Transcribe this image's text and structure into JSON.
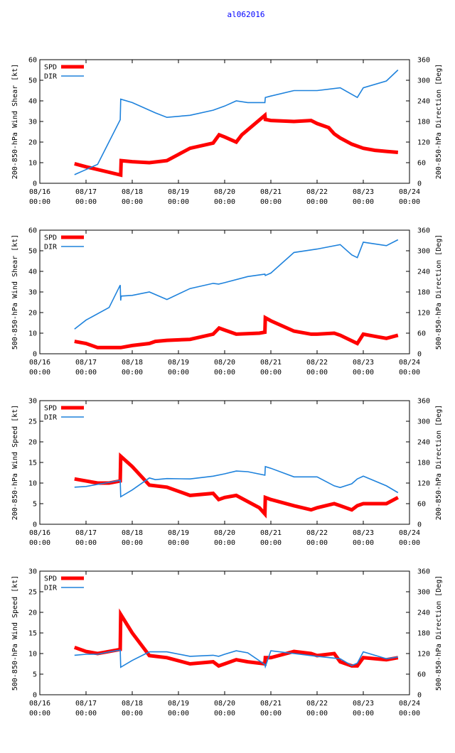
{
  "title": "al062016",
  "colors": {
    "spd": "#ff0000",
    "dir": "#1e82dc",
    "title": "#0000ff"
  },
  "chart_data": [
    {
      "type": "line",
      "ylabel": "200-850-hPa Wind Shear [kt]",
      "y2label": "200-850-hPa Direction [Deg]",
      "ylim": [
        0,
        60
      ],
      "y2lim": [
        0,
        360
      ],
      "yticks": [
        "0",
        "10",
        "20",
        "30",
        "40",
        "50",
        "60"
      ],
      "y2ticks": [
        "0",
        "60",
        "120",
        "180",
        "240",
        "300",
        "360"
      ],
      "xlim": [
        0,
        8
      ],
      "xticks": [
        [
          "08/16",
          "00:00"
        ],
        [
          "08/17",
          "00:00"
        ],
        [
          "08/18",
          "00:00"
        ],
        [
          "08/19",
          "00:00"
        ],
        [
          "08/20",
          "00:00"
        ],
        [
          "08/21",
          "00:00"
        ],
        [
          "08/22",
          "00:00"
        ],
        [
          "08/23",
          "00:00"
        ],
        [
          "08/24",
          "00:00"
        ]
      ],
      "legend": [
        "SPD",
        "DIR"
      ],
      "series": [
        {
          "name": "SPD",
          "axis": "left",
          "x": [
            0.75,
            1.0,
            1.75,
            1.76,
            2.0,
            2.37,
            2.75,
            3.0,
            3.25,
            3.75,
            3.88,
            4.0,
            4.25,
            4.37,
            4.87,
            4.88,
            5.0,
            5.5,
            5.87,
            6.0,
            6.25,
            6.37,
            6.5,
            6.75,
            7.0,
            7.25,
            7.5,
            7.75
          ],
          "y": [
            9.5,
            8,
            4,
            11,
            10.5,
            10,
            11,
            14,
            17,
            19.5,
            23.5,
            22.5,
            20,
            23.5,
            33,
            31,
            30.5,
            30,
            30.5,
            29,
            27,
            24,
            22,
            19,
            17,
            16,
            15.5,
            15
          ]
        },
        {
          "name": "DIR",
          "axis": "right",
          "x": [
            0.75,
            1.0,
            1.25,
            1.74,
            1.75,
            2.0,
            2.5,
            2.75,
            3.25,
            3.75,
            4.0,
            4.25,
            4.5,
            4.87,
            4.88,
            5.0,
            5.5,
            5.87,
            6.0,
            6.5,
            6.87,
            7.0,
            7.5,
            7.75
          ],
          "y": [
            25,
            40,
            55,
            185,
            245,
            235,
            205,
            192,
            198,
            213,
            225,
            240,
            235,
            235,
            250,
            254,
            270,
            270,
            270,
            278,
            250,
            278,
            298,
            330
          ]
        }
      ]
    },
    {
      "type": "line",
      "ylabel": "500-850-hPa Wind Shear [kt]",
      "y2label": "500-850-hPa Direction [Deg]",
      "ylim": [
        0,
        60
      ],
      "y2lim": [
        0,
        360
      ],
      "yticks": [
        "0",
        "10",
        "20",
        "30",
        "40",
        "50",
        "60"
      ],
      "y2ticks": [
        "0",
        "60",
        "120",
        "180",
        "240",
        "300",
        "360"
      ],
      "xlim": [
        0,
        8
      ],
      "xticks": [
        [
          "08/16",
          "00:00"
        ],
        [
          "08/17",
          "00:00"
        ],
        [
          "08/18",
          "00:00"
        ],
        [
          "08/19",
          "00:00"
        ],
        [
          "08/20",
          "00:00"
        ],
        [
          "08/21",
          "00:00"
        ],
        [
          "08/22",
          "00:00"
        ],
        [
          "08/23",
          "00:00"
        ],
        [
          "08/24",
          "00:00"
        ]
      ],
      "legend": [
        "SPD",
        "DIR"
      ],
      "series": [
        {
          "name": "SPD",
          "axis": "left",
          "x": [
            0.75,
            1.0,
            1.25,
            1.75,
            2.0,
            2.37,
            2.5,
            2.75,
            3.25,
            3.75,
            3.88,
            4.0,
            4.25,
            4.75,
            4.87,
            4.88,
            5.0,
            5.5,
            5.87,
            6.0,
            6.37,
            6.5,
            6.87,
            7.0,
            7.25,
            7.5,
            7.75
          ],
          "y": [
            6,
            5,
            3,
            3,
            4,
            5,
            6,
            6.5,
            7,
            9.5,
            12.5,
            11.5,
            9.5,
            10,
            10.5,
            17.5,
            16,
            11,
            9.5,
            9.5,
            10,
            9,
            5,
            9.5,
            8.5,
            7.5,
            9
          ]
        },
        {
          "name": "DIR",
          "axis": "right",
          "x": [
            0.75,
            1.0,
            1.5,
            1.74,
            1.75,
            1.76,
            2.0,
            2.37,
            2.75,
            3.25,
            3.75,
            3.87,
            4.0,
            4.5,
            4.87,
            4.88,
            5.0,
            5.5,
            6.0,
            6.5,
            6.75,
            6.87,
            7.0,
            7.5,
            7.75
          ],
          "y": [
            72,
            98,
            135,
            200,
            155,
            168,
            170,
            180,
            158,
            190,
            205,
            203,
            207,
            225,
            232,
            228,
            235,
            295,
            305,
            318,
            288,
            280,
            325,
            315,
            332
          ]
        }
      ]
    },
    {
      "type": "line",
      "ylabel": "200-850-hPa Wind Speed [kt]",
      "y2label": "200-850-hPa Direction [Deg]",
      "ylim": [
        0,
        30
      ],
      "y2lim": [
        0,
        360
      ],
      "yticks": [
        "0",
        "5",
        "10",
        "15",
        "20",
        "25",
        "30"
      ],
      "y2ticks": [
        "0",
        "60",
        "120",
        "180",
        "240",
        "300",
        "360"
      ],
      "xlim": [
        0,
        8
      ],
      "xticks": [
        [
          "08/16",
          "00:00"
        ],
        [
          "08/17",
          "00:00"
        ],
        [
          "08/18",
          "00:00"
        ],
        [
          "08/19",
          "00:00"
        ],
        [
          "08/20",
          "00:00"
        ],
        [
          "08/21",
          "00:00"
        ],
        [
          "08/22",
          "00:00"
        ],
        [
          "08/23",
          "00:00"
        ],
        [
          "08/24",
          "00:00"
        ]
      ],
      "legend": [
        "SPD",
        "DIR"
      ],
      "series": [
        {
          "name": "SPD",
          "axis": "left",
          "x": [
            0.75,
            1.0,
            1.25,
            1.5,
            1.74,
            1.75,
            2.0,
            2.37,
            2.75,
            3.25,
            3.75,
            3.87,
            4.0,
            4.25,
            4.75,
            4.87,
            4.88,
            5.0,
            5.5,
            5.87,
            6.0,
            6.37,
            6.5,
            6.75,
            6.87,
            7.0,
            7.5,
            7.75
          ],
          "y": [
            11,
            10.5,
            10,
            10,
            10.5,
            16.5,
            14,
            9.5,
            9,
            7,
            7.5,
            6,
            6.5,
            7,
            4,
            2.5,
            6.5,
            6,
            4.5,
            3.5,
            4,
            5,
            4.5,
            3.5,
            4.5,
            5,
            5,
            6.5
          ]
        },
        {
          "name": "DIR",
          "axis": "right",
          "x": [
            0.75,
            1.0,
            1.5,
            1.74,
            1.75,
            2.0,
            2.37,
            2.5,
            2.75,
            3.25,
            3.75,
            4.0,
            4.25,
            4.5,
            4.87,
            4.88,
            5.0,
            5.5,
            6.0,
            6.37,
            6.5,
            6.75,
            6.87,
            7.0,
            7.5,
            7.75
          ],
          "y": [
            108,
            110,
            122,
            128,
            80,
            100,
            135,
            130,
            133,
            132,
            140,
            147,
            155,
            153,
            143,
            168,
            163,
            138,
            138,
            112,
            107,
            118,
            132,
            140,
            112,
            92
          ]
        }
      ]
    },
    {
      "type": "line",
      "ylabel": "500-850-hPa Wind Speed [kt]",
      "y2label": "500-850-hPa Direction [Deg]",
      "ylim": [
        0,
        30
      ],
      "y2lim": [
        0,
        360
      ],
      "yticks": [
        "0",
        "5",
        "10",
        "15",
        "20",
        "25",
        "30"
      ],
      "y2ticks": [
        "0",
        "60",
        "120",
        "180",
        "240",
        "300",
        "360"
      ],
      "xlim": [
        0,
        8
      ],
      "xticks": [
        [
          "08/16",
          "00:00"
        ],
        [
          "08/17",
          "00:00"
        ],
        [
          "08/18",
          "00:00"
        ],
        [
          "08/19",
          "00:00"
        ],
        [
          "08/20",
          "00:00"
        ],
        [
          "08/21",
          "00:00"
        ],
        [
          "08/22",
          "00:00"
        ],
        [
          "08/23",
          "00:00"
        ],
        [
          "08/24",
          "00:00"
        ]
      ],
      "legend": [
        "SPD",
        "DIR"
      ],
      "series": [
        {
          "name": "SPD",
          "axis": "left",
          "x": [
            0.75,
            1.0,
            1.25,
            1.5,
            1.74,
            1.75,
            2.0,
            2.37,
            2.75,
            3.25,
            3.75,
            3.87,
            4.0,
            4.25,
            4.5,
            4.87,
            4.88,
            5.0,
            5.5,
            5.87,
            6.0,
            6.37,
            6.5,
            6.75,
            6.87,
            7.0,
            7.5,
            7.75
          ],
          "y": [
            11.5,
            10.5,
            10,
            10.5,
            11,
            19.5,
            15,
            9.5,
            9,
            7.5,
            8,
            7,
            7.5,
            8.5,
            8,
            7.5,
            9,
            9,
            10.5,
            10,
            9.5,
            10,
            8,
            7,
            7,
            9,
            8.5,
            9
          ]
        },
        {
          "name": "DIR",
          "axis": "right",
          "x": [
            0.75,
            1.0,
            1.25,
            1.5,
            1.74,
            1.75,
            2.0,
            2.37,
            2.75,
            3.25,
            3.75,
            3.87,
            4.0,
            4.25,
            4.5,
            4.87,
            4.88,
            5.0,
            5.5,
            6.0,
            6.5,
            6.75,
            6.87,
            7.0,
            7.5,
            7.75
          ],
          "y": [
            115,
            118,
            118,
            125,
            130,
            80,
            100,
            125,
            125,
            112,
            115,
            112,
            118,
            128,
            122,
            88,
            82,
            128,
            120,
            112,
            105,
            85,
            92,
            125,
            105,
            110
          ]
        }
      ]
    }
  ]
}
